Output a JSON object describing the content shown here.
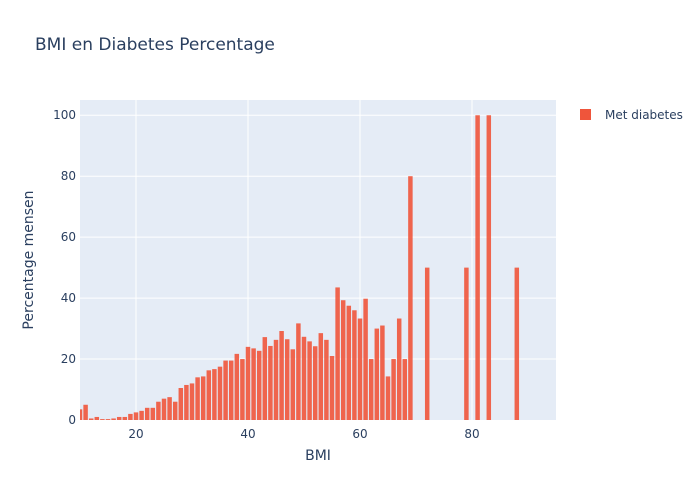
{
  "chart_data": {
    "type": "bar",
    "title": "BMI en Diabetes Percentage",
    "xlabel": "BMI",
    "ylabel": "Percentage mensen",
    "xlim": [
      10,
      95
    ],
    "ylim": [
      0,
      105
    ],
    "x_ticks": [
      20,
      40,
      60,
      80
    ],
    "y_ticks": [
      0,
      20,
      40,
      60,
      80,
      100
    ],
    "grid": true,
    "legend_position": "top-right",
    "plot_background": "#e5ecf6",
    "series": [
      {
        "name": "Met diabetes",
        "color": "#ef553b",
        "x": [
          10,
          11,
          12,
          13,
          14,
          15,
          16,
          17,
          18,
          19,
          20,
          21,
          22,
          23,
          24,
          25,
          26,
          27,
          28,
          29,
          30,
          31,
          32,
          33,
          34,
          35,
          36,
          37,
          38,
          39,
          40,
          41,
          42,
          43,
          44,
          45,
          46,
          47,
          48,
          49,
          50,
          51,
          52,
          53,
          54,
          55,
          56,
          57,
          58,
          59,
          60,
          61,
          62,
          63,
          64,
          65,
          66,
          67,
          68,
          69,
          72,
          79,
          81,
          83,
          88
        ],
        "values": [
          3.5,
          5,
          0.5,
          1,
          0.3,
          0.3,
          0.5,
          1,
          1,
          2,
          2.5,
          3,
          4,
          4,
          6,
          7,
          7.5,
          6,
          10.5,
          11.5,
          12,
          14,
          14.3,
          16.3,
          16.7,
          17.5,
          19.5,
          19.5,
          21.7,
          20,
          24,
          23.5,
          22.7,
          27.2,
          24.3,
          26.3,
          29.2,
          26.5,
          23.2,
          31.7,
          27.3,
          25.8,
          24.2,
          28.5,
          26.3,
          21,
          43.5,
          39.3,
          37.5,
          36,
          33.3,
          39.8,
          20,
          30,
          31,
          14.3,
          20,
          33.3,
          20,
          80,
          50,
          50,
          100,
          100,
          50
        ]
      }
    ]
  }
}
